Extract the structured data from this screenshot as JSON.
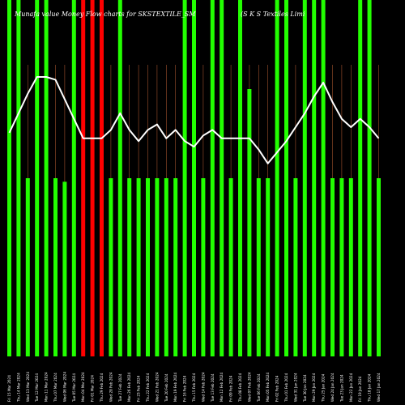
{
  "chart_data": {
    "type": "bar",
    "title": "Munafa value Money Flow charts for SKSTEXTILE_SM",
    "subtitle": "(S K S Textiles Limi",
    "xlabel": "",
    "ylabel": "",
    "ylim": [
      0,
      100
    ],
    "grid": false,
    "legend": "none",
    "colors": {
      "up": "#22ff00",
      "down": "#ff0000",
      "line": "#ffffff",
      "grid": "#a0522d",
      "background": "#000000"
    },
    "categories": [
      "Fri 15 Mar 2024",
      "Thu 14 Mar 2024",
      "Wed 13 Mar 2024",
      "Tue 12 Mar 2024",
      "Mon 11 Mar 2024",
      "Thu 07 Mar 2024",
      "Wed 06 Mar 2024",
      "Tue 05 Mar 2024",
      "Mon 04 Mar 2024",
      "Fri 01 Mar 2024",
      "Thu 29 Feb 2024",
      "Wed 28 Feb 2024",
      "Tue 27 Feb 2024",
      "Mon 26 Feb 2024",
      "Fri 23 Feb 2024",
      "Thu 22 Feb 2024",
      "Wed 21 Feb 2024",
      "Tue 20 Feb 2024",
      "Mon 19 Feb 2024",
      "Fri 16 Feb 2024",
      "Thu 15 Feb 2024",
      "Wed 14 Feb 2024",
      "Tue 13 Feb 2024",
      "Mon 12 Feb 2024",
      "Fri 09 Feb 2024",
      "Thu 08 Feb 2024",
      "Wed 07 Feb 2024",
      "Tue 06 Feb 2024",
      "Mon 05 Feb 2024",
      "Fri 02 Feb 2024",
      "Thu 01 Feb 2024",
      "Wed 31 Jan 2024",
      "Tue 30 Jan 2024",
      "Mon 29 Jan 2024",
      "Thu 25 Jan 2024",
      "Wed 24 Jan 2024",
      "Tue 23 Jan 2024",
      "Mon 22 Jan 2024",
      "Fri 19 Jan 2024",
      "Thu 18 Jan 2024",
      "Wed 17 Jan 2024"
    ],
    "series": [
      {
        "type": "bar",
        "values": [
          100,
          100,
          50,
          100,
          100,
          50,
          49,
          100,
          100,
          100,
          100,
          50,
          100,
          50,
          50,
          50,
          50,
          50,
          50,
          100,
          100,
          50,
          100,
          100,
          50,
          100,
          75,
          50,
          50,
          100,
          100,
          50,
          100,
          100,
          100,
          50,
          50,
          50,
          100,
          100,
          50
        ],
        "directions": [
          "up",
          "up",
          "up",
          "up",
          "up",
          "up",
          "up",
          "up",
          "down",
          "down",
          "down",
          "up",
          "up",
          "up",
          "up",
          "up",
          "up",
          "up",
          "up",
          "up",
          "up",
          "up",
          "up",
          "up",
          "up",
          "up",
          "up",
          "up",
          "up",
          "up",
          "up",
          "up",
          "up",
          "up",
          "up",
          "up",
          "up",
          "up",
          "up",
          "up",
          "up"
        ]
      },
      {
        "type": "line",
        "values": [
          65,
          72,
          79,
          85,
          85,
          84,
          77,
          70,
          63,
          63,
          63,
          66,
          72,
          66,
          62,
          66,
          68,
          63,
          66,
          62,
          60,
          64,
          66,
          63,
          63,
          63,
          63,
          59,
          54,
          58,
          62,
          67,
          72,
          78,
          83,
          76,
          70,
          67,
          70,
          67,
          63
        ]
      }
    ]
  }
}
